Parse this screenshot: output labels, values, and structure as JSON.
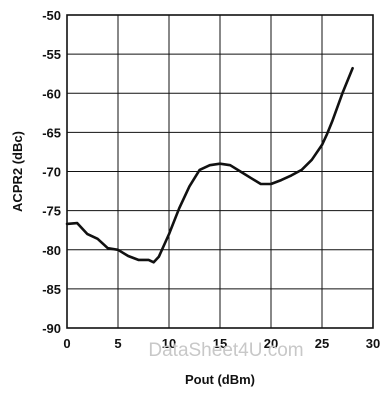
{
  "chart_data": {
    "type": "line",
    "title": "",
    "xlabel": "Pout (dBm)",
    "ylabel": "ACPR2 (dBc)",
    "xlim": [
      0,
      30
    ],
    "ylim": [
      -90,
      -50
    ],
    "x_ticks": [
      0,
      5,
      10,
      15,
      20,
      25,
      30
    ],
    "y_ticks": [
      -90,
      -85,
      -80,
      -75,
      -70,
      -65,
      -60,
      -55,
      -50
    ],
    "x_tick_labels": [
      "0",
      "5",
      "10",
      "15",
      "20",
      "25",
      "30"
    ],
    "y_tick_labels": [
      "-90",
      "-85",
      "-80",
      "-75",
      "-70",
      "-65",
      "-60",
      "-55",
      "-50"
    ],
    "grid": true,
    "legend": "none",
    "line_color": "#111111",
    "watermark": "DataSheet4U.com",
    "series": [
      {
        "x": [
          0,
          1,
          2,
          3,
          4,
          5,
          6,
          7,
          8,
          8.5,
          9,
          10,
          11,
          12,
          13,
          14,
          15,
          16,
          17,
          18,
          19,
          20,
          21,
          22,
          23,
          24,
          25,
          25.5,
          26,
          27,
          28
        ],
        "y": [
          -76.7,
          -76.6,
          -78.0,
          -78.6,
          -79.8,
          -80.0,
          -80.8,
          -81.3,
          -81.3,
          -81.6,
          -80.9,
          -78.0,
          -74.7,
          -71.9,
          -69.8,
          -69.2,
          -69.0,
          -69.2,
          -70.0,
          -70.8,
          -71.6,
          -71.6,
          -71.1,
          -70.5,
          -69.8,
          -68.5,
          -66.6,
          -65.2,
          -63.6,
          -60.0,
          -56.8
        ]
      }
    ]
  }
}
